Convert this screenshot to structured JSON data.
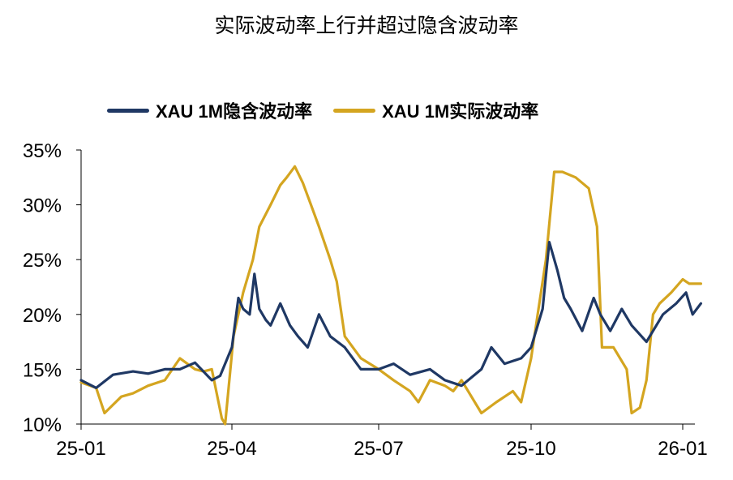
{
  "chart_data": {
    "type": "line",
    "title": "实际波动率上行并超过隐含波动率",
    "xlabel": "",
    "ylabel": "",
    "x_ticks": [
      "25-01",
      "25-04",
      "25-07",
      "25-10",
      "26-01"
    ],
    "x_tick_dates": [
      "2025-01-01",
      "2025-04-01",
      "2025-07-01",
      "2025-10-01",
      "2026-01-01"
    ],
    "ylim": [
      0.1,
      0.35
    ],
    "y_ticks": [
      "10%",
      "15%",
      "20%",
      "25%",
      "30%",
      "35%"
    ],
    "y_tick_values": [
      0.1,
      0.15,
      0.2,
      0.25,
      0.3,
      0.35
    ],
    "grid": false,
    "legend_position": "top",
    "series": [
      {
        "name": "XAU 1M隐含波动率",
        "color": "#1f3864",
        "x": [
          "2025-01-01",
          "2025-01-10",
          "2025-01-20",
          "2025-02-01",
          "2025-02-10",
          "2025-02-20",
          "2025-03-01",
          "2025-03-10",
          "2025-03-20",
          "2025-03-25",
          "2025-04-01",
          "2025-04-05",
          "2025-04-08",
          "2025-04-12",
          "2025-04-15",
          "2025-04-18",
          "2025-04-22",
          "2025-04-25",
          "2025-05-01",
          "2025-05-07",
          "2025-05-12",
          "2025-05-18",
          "2025-05-25",
          "2025-06-01",
          "2025-06-10",
          "2025-06-20",
          "2025-07-01",
          "2025-07-10",
          "2025-07-20",
          "2025-08-01",
          "2025-08-10",
          "2025-08-20",
          "2025-09-01",
          "2025-09-07",
          "2025-09-15",
          "2025-09-25",
          "2025-10-01",
          "2025-10-08",
          "2025-10-12",
          "2025-10-17",
          "2025-10-21",
          "2025-10-25",
          "2025-11-01",
          "2025-11-08",
          "2025-11-12",
          "2025-11-18",
          "2025-11-25",
          "2025-12-01",
          "2025-12-10",
          "2025-12-20",
          "2025-12-28",
          "2026-01-03",
          "2026-01-07",
          "2026-01-12"
        ],
        "values": [
          0.14,
          0.133,
          0.145,
          0.148,
          0.146,
          0.15,
          0.15,
          0.156,
          0.14,
          0.144,
          0.17,
          0.215,
          0.205,
          0.2,
          0.237,
          0.205,
          0.195,
          0.19,
          0.21,
          0.19,
          0.18,
          0.17,
          0.2,
          0.18,
          0.17,
          0.15,
          0.15,
          0.155,
          0.145,
          0.15,
          0.14,
          0.135,
          0.15,
          0.17,
          0.155,
          0.16,
          0.17,
          0.205,
          0.266,
          0.24,
          0.215,
          0.205,
          0.185,
          0.215,
          0.2,
          0.185,
          0.205,
          0.19,
          0.175,
          0.2,
          0.21,
          0.22,
          0.2,
          0.21
        ]
      },
      {
        "name": "XAU 1M实际波动率",
        "color": "#d4a520",
        "x": [
          "2025-01-01",
          "2025-01-10",
          "2025-01-15",
          "2025-01-25",
          "2025-02-01",
          "2025-02-10",
          "2025-02-20",
          "2025-03-01",
          "2025-03-10",
          "2025-03-15",
          "2025-03-20",
          "2025-03-26",
          "2025-03-28",
          "2025-04-02",
          "2025-04-08",
          "2025-04-14",
          "2025-04-18",
          "2025-04-25",
          "2025-05-01",
          "2025-05-05",
          "2025-05-10",
          "2025-05-15",
          "2025-05-20",
          "2025-05-25",
          "2025-06-01",
          "2025-06-05",
          "2025-06-10",
          "2025-06-15",
          "2025-06-20",
          "2025-07-01",
          "2025-07-10",
          "2025-07-20",
          "2025-07-25",
          "2025-08-01",
          "2025-08-10",
          "2025-08-15",
          "2025-08-20",
          "2025-09-01",
          "2025-09-10",
          "2025-09-20",
          "2025-09-25",
          "2025-10-01",
          "2025-10-05",
          "2025-10-10",
          "2025-10-15",
          "2025-10-20",
          "2025-10-28",
          "2025-11-05",
          "2025-11-10",
          "2025-11-13",
          "2025-11-20",
          "2025-11-28",
          "2025-12-01",
          "2025-12-06",
          "2025-12-10",
          "2025-12-14",
          "2025-12-18",
          "2025-12-25",
          "2026-01-01",
          "2026-01-05",
          "2026-01-12"
        ],
        "values": [
          0.138,
          0.133,
          0.11,
          0.125,
          0.128,
          0.135,
          0.14,
          0.16,
          0.15,
          0.148,
          0.15,
          0.105,
          0.1,
          0.18,
          0.22,
          0.25,
          0.28,
          0.3,
          0.318,
          0.325,
          0.335,
          0.32,
          0.3,
          0.28,
          0.25,
          0.23,
          0.18,
          0.17,
          0.16,
          0.15,
          0.14,
          0.13,
          0.12,
          0.14,
          0.135,
          0.13,
          0.14,
          0.11,
          0.12,
          0.13,
          0.12,
          0.16,
          0.2,
          0.25,
          0.33,
          0.33,
          0.325,
          0.315,
          0.28,
          0.17,
          0.17,
          0.15,
          0.11,
          0.115,
          0.14,
          0.2,
          0.21,
          0.22,
          0.232,
          0.228,
          0.228
        ]
      }
    ]
  }
}
